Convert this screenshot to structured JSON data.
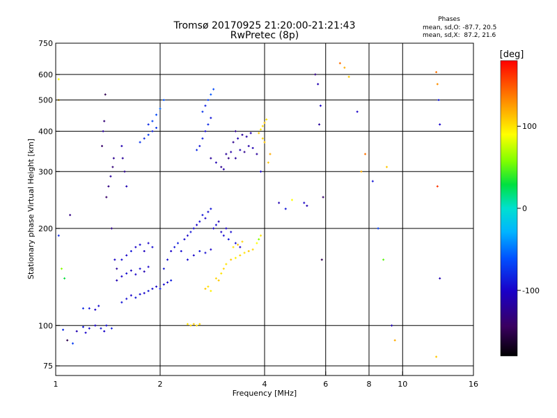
{
  "chart_data": {
    "type": "scatter",
    "title": "Tromsø 20170925 21:20:00-21:21:43",
    "subtitle": "RwPretec (8p)",
    "xlabel": "Frequency [MHz]",
    "ylabel": "Stationary phase Virtual Height [km]",
    "x_scale": "log",
    "y_scale": "log",
    "xlim": [
      1,
      16
    ],
    "ylim": [
      70,
      750
    ],
    "x_ticks": [
      1,
      2,
      4,
      6,
      8,
      10,
      16
    ],
    "y_ticks": [
      75,
      100,
      200,
      300,
      400,
      500,
      600,
      750
    ],
    "grid": true,
    "phase_stats": {
      "title": "Phases",
      "line_o": "mean, sd,O: -87.7, 20.5",
      "line_x": "mean, sd,X:  87.2, 21.6"
    },
    "colorbar": {
      "label": "[deg]",
      "range": [
        -180,
        180
      ],
      "ticks": [
        100,
        0,
        -100
      ]
    },
    "series": [
      {
        "points": [
          [
            1.05,
            97,
            -80
          ],
          [
            1.08,
            90,
            -150
          ],
          [
            1.12,
            88,
            -70
          ],
          [
            1.15,
            96,
            -110
          ],
          [
            1.2,
            99,
            -90
          ],
          [
            1.22,
            95,
            -100
          ],
          [
            1.25,
            98,
            -95
          ],
          [
            1.3,
            100,
            -100
          ],
          [
            1.35,
            98,
            -90
          ],
          [
            1.38,
            96,
            -100
          ],
          [
            1.4,
            100,
            -95
          ],
          [
            1.45,
            98,
            -85
          ],
          [
            1.2,
            113,
            -80
          ],
          [
            1.25,
            113,
            -90
          ],
          [
            1.3,
            112,
            -100
          ],
          [
            1.33,
            115,
            -95
          ],
          [
            1.55,
            118,
            -90
          ],
          [
            1.6,
            121,
            -95
          ],
          [
            1.65,
            124,
            -100
          ],
          [
            1.7,
            122,
            -90
          ],
          [
            1.75,
            125,
            -95
          ],
          [
            1.8,
            126,
            -100
          ],
          [
            1.85,
            128,
            -90
          ],
          [
            1.9,
            130,
            -95
          ],
          [
            1.95,
            132,
            -100
          ],
          [
            2.0,
            130,
            -90
          ],
          [
            2.05,
            134,
            -95
          ],
          [
            2.1,
            136,
            -100
          ],
          [
            2.15,
            138,
            -85
          ],
          [
            1.5,
            138,
            -110
          ],
          [
            1.55,
            142,
            -100
          ],
          [
            1.6,
            145,
            -95
          ],
          [
            1.65,
            148,
            -105
          ],
          [
            1.7,
            144,
            -100
          ],
          [
            1.75,
            150,
            -95
          ],
          [
            1.8,
            147,
            -110
          ],
          [
            1.85,
            152,
            -100
          ],
          [
            1.55,
            160,
            -95
          ],
          [
            1.6,
            165,
            -100
          ],
          [
            1.65,
            170,
            -90
          ],
          [
            1.7,
            175,
            -100
          ],
          [
            1.75,
            178,
            -95
          ],
          [
            1.8,
            170,
            -105
          ],
          [
            1.85,
            180,
            -100
          ],
          [
            1.9,
            175,
            -95
          ],
          [
            2.05,
            150,
            -90
          ],
          [
            2.1,
            160,
            -95
          ],
          [
            2.15,
            170,
            -100
          ],
          [
            2.2,
            175,
            -90
          ],
          [
            2.25,
            180,
            -85
          ],
          [
            2.3,
            170,
            -95
          ],
          [
            2.35,
            185,
            -95
          ],
          [
            2.4,
            190,
            -100
          ],
          [
            2.45,
            195,
            -90
          ],
          [
            2.5,
            200,
            -95
          ],
          [
            2.55,
            205,
            -100
          ],
          [
            2.6,
            210,
            -95
          ],
          [
            2.65,
            220,
            -90
          ],
          [
            2.7,
            215,
            -100
          ],
          [
            2.75,
            225,
            -95
          ],
          [
            2.8,
            230,
            -90
          ],
          [
            2.85,
            200,
            -100
          ],
          [
            2.9,
            205,
            -95
          ],
          [
            2.95,
            210,
            -110
          ],
          [
            3.0,
            195,
            -100
          ],
          [
            3.05,
            190,
            -95
          ],
          [
            3.1,
            200,
            -100
          ],
          [
            3.15,
            185,
            -90
          ],
          [
            3.2,
            195,
            -95
          ],
          [
            3.3,
            180,
            -95
          ],
          [
            3.4,
            175,
            -100
          ],
          [
            2.4,
            160,
            -95
          ],
          [
            2.5,
            165,
            -100
          ],
          [
            2.6,
            170,
            -90
          ],
          [
            2.7,
            168,
            -95
          ],
          [
            2.8,
            172,
            -100
          ],
          [
            2.4,
            101,
            100
          ],
          [
            2.45,
            100,
            105
          ],
          [
            2.5,
            101,
            110
          ],
          [
            2.55,
            100,
            100
          ],
          [
            2.6,
            101,
            105
          ],
          [
            2.7,
            130,
            110
          ],
          [
            2.75,
            132,
            100
          ],
          [
            2.8,
            128,
            95
          ],
          [
            2.9,
            140,
            105
          ],
          [
            2.95,
            138,
            110
          ],
          [
            3.0,
            145,
            100
          ],
          [
            3.05,
            150,
            105
          ],
          [
            3.1,
            155,
            100
          ],
          [
            3.2,
            160,
            110
          ],
          [
            3.3,
            162,
            95
          ],
          [
            3.4,
            165,
            105
          ],
          [
            3.5,
            168,
            100
          ],
          [
            3.6,
            170,
            110
          ],
          [
            3.7,
            172,
            105
          ],
          [
            3.25,
            175,
            100
          ],
          [
            3.35,
            178,
            110
          ],
          [
            3.45,
            182,
            105
          ],
          [
            3.8,
            180,
            90
          ],
          [
            3.85,
            185,
            60
          ],
          [
            3.9,
            190,
            100
          ],
          [
            3.85,
            395,
            110
          ],
          [
            3.9,
            405,
            100
          ],
          [
            3.95,
            415,
            105
          ],
          [
            4.0,
            425,
            110
          ],
          [
            4.05,
            435,
            100
          ],
          [
            3.95,
            380,
            105
          ],
          [
            4.0,
            370,
            110
          ],
          [
            2.8,
            330,
            -120
          ],
          [
            2.9,
            320,
            -110
          ],
          [
            3.0,
            310,
            -125
          ],
          [
            3.05,
            305,
            -115
          ],
          [
            3.1,
            340,
            -120
          ],
          [
            3.15,
            330,
            -130
          ],
          [
            3.2,
            345,
            -115
          ],
          [
            3.3,
            330,
            -120
          ],
          [
            3.4,
            350,
            -110
          ],
          [
            3.5,
            345,
            -125
          ],
          [
            3.6,
            360,
            -115
          ],
          [
            3.7,
            355,
            -110
          ],
          [
            3.8,
            340,
            -120
          ],
          [
            3.25,
            370,
            -125
          ],
          [
            3.35,
            380,
            -110
          ],
          [
            3.45,
            390,
            -120
          ],
          [
            3.55,
            385,
            -115
          ],
          [
            3.65,
            395,
            -110
          ],
          [
            3.3,
            400,
            -125
          ],
          [
            2.55,
            350,
            -80
          ],
          [
            2.6,
            360,
            -90
          ],
          [
            2.65,
            380,
            -85
          ],
          [
            2.7,
            400,
            -95
          ],
          [
            2.75,
            420,
            -80
          ],
          [
            2.8,
            440,
            -90
          ],
          [
            2.65,
            460,
            -75
          ],
          [
            2.7,
            480,
            -85
          ],
          [
            2.75,
            500,
            -70
          ],
          [
            2.8,
            520,
            -60
          ],
          [
            2.85,
            540,
            -65
          ],
          [
            1.75,
            370,
            -75
          ],
          [
            1.8,
            380,
            -80
          ],
          [
            1.85,
            390,
            -70
          ],
          [
            1.9,
            400,
            -85
          ],
          [
            1.95,
            410,
            -75
          ],
          [
            1.85,
            420,
            -80
          ],
          [
            1.9,
            430,
            -70
          ],
          [
            1.95,
            450,
            -65
          ],
          [
            2.0,
            470,
            -55
          ],
          [
            2.05,
            500,
            -60
          ],
          [
            1.4,
            250,
            -140
          ],
          [
            1.42,
            270,
            -130
          ],
          [
            1.44,
            290,
            -120
          ],
          [
            1.46,
            310,
            -135
          ],
          [
            1.47,
            330,
            -125
          ],
          [
            1.36,
            360,
            -140
          ],
          [
            1.37,
            400,
            -120
          ],
          [
            1.38,
            430,
            -135
          ],
          [
            1.39,
            520,
            -150
          ],
          [
            1.45,
            200,
            -130
          ],
          [
            1.48,
            160,
            -100
          ],
          [
            1.5,
            150,
            -120
          ],
          [
            1.55,
            360,
            -110
          ],
          [
            1.56,
            330,
            -120
          ],
          [
            1.58,
            300,
            -125
          ],
          [
            1.6,
            270,
            -110
          ],
          [
            5.6,
            600,
            -130
          ],
          [
            5.7,
            560,
            -110
          ],
          [
            5.8,
            480,
            -100
          ],
          [
            5.75,
            420,
            -120
          ],
          [
            5.9,
            250,
            -140
          ],
          [
            5.85,
            160,
            -150
          ],
          [
            4.4,
            240,
            -110
          ],
          [
            4.6,
            230,
            -90
          ],
          [
            4.8,
            245,
            90
          ],
          [
            5.2,
            240,
            -100
          ],
          [
            5.3,
            235,
            -110
          ],
          [
            6.6,
            650,
            140
          ],
          [
            6.8,
            630,
            120
          ],
          [
            7.0,
            590,
            110
          ],
          [
            7.4,
            460,
            -100
          ],
          [
            7.6,
            300,
            120
          ],
          [
            7.8,
            340,
            140
          ],
          [
            8.2,
            280,
            -90
          ],
          [
            8.5,
            200,
            -70
          ],
          [
            8.8,
            160,
            50
          ],
          [
            9.0,
            310,
            110
          ],
          [
            9.3,
            100,
            -110
          ],
          [
            9.5,
            90,
            120
          ],
          [
            12.5,
            610,
            140
          ],
          [
            12.6,
            560,
            130
          ],
          [
            12.7,
            500,
            -90
          ],
          [
            12.8,
            420,
            -100
          ],
          [
            12.6,
            270,
            160
          ],
          [
            12.8,
            140,
            -110
          ],
          [
            12.5,
            80,
            110
          ],
          [
            1.02,
            500,
            110
          ],
          [
            1.02,
            190,
            -80
          ],
          [
            1.04,
            150,
            60
          ],
          [
            1.06,
            140,
            30
          ],
          [
            1.02,
            580,
            90
          ],
          [
            1.1,
            220,
            -130
          ],
          [
            4.1,
            320,
            110
          ],
          [
            4.15,
            340,
            120
          ],
          [
            3.9,
            300,
            -100
          ]
        ]
      }
    ]
  }
}
